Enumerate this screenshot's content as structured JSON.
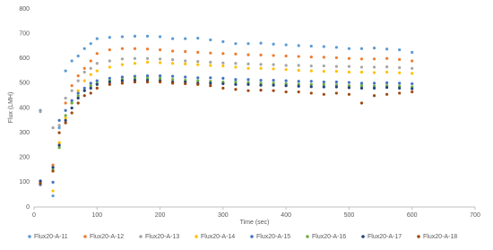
{
  "chart_data": {
    "type": "scatter",
    "x_label": "Time (sec)",
    "y_label": "Flux (LMH)",
    "x": [
      10,
      30,
      40,
      50,
      60,
      70,
      80,
      90,
      100,
      120,
      140,
      160,
      180,
      200,
      220,
      240,
      260,
      280,
      300,
      320,
      340,
      360,
      380,
      400,
      420,
      440,
      460,
      480,
      500,
      520,
      540,
      560,
      580,
      600
    ],
    "series": [
      {
        "name": "Flux20-A-11",
        "color": "#5b9bd5",
        "values": [
          390,
          45,
          320,
          550,
          590,
          610,
          640,
          660,
          680,
          685,
          688,
          690,
          690,
          688,
          680,
          680,
          682,
          675,
          668,
          660,
          660,
          662,
          658,
          655,
          652,
          650,
          648,
          645,
          640,
          640,
          642,
          638,
          635,
          625
        ]
      },
      {
        "name": "Flux20-A-12",
        "color": "#ed7d31",
        "values": [
          100,
          170,
          260,
          420,
          490,
          530,
          560,
          590,
          620,
          635,
          640,
          640,
          638,
          635,
          630,
          628,
          625,
          622,
          620,
          618,
          615,
          614,
          612,
          610,
          608,
          606,
          605,
          603,
          600,
          598,
          598,
          600,
          596,
          590
        ]
      },
      {
        "name": "Flux20-A-13",
        "color": "#a5a5a5",
        "values": [
          385,
          320,
          330,
          440,
          470,
          510,
          545,
          560,
          580,
          590,
          598,
          600,
          600,
          598,
          595,
          590,
          588,
          585,
          582,
          580,
          578,
          576,
          575,
          572,
          572,
          570,
          570,
          568,
          568,
          565,
          565,
          566,
          563,
          560
        ]
      },
      {
        "name": "Flux20-A-14",
        "color": "#ffc000",
        "values": [
          95,
          65,
          260,
          360,
          420,
          470,
          510,
          535,
          550,
          565,
          575,
          580,
          585,
          583,
          580,
          578,
          575,
          572,
          570,
          565,
          560,
          560,
          558,
          555,
          552,
          550,
          548,
          548,
          545,
          545,
          543,
          545,
          542,
          540
        ]
      },
      {
        "name": "Flux20-A-15",
        "color": "#4472c4",
        "values": [
          90,
          100,
          350,
          390,
          430,
          460,
          480,
          500,
          510,
          520,
          525,
          528,
          530,
          530,
          528,
          525,
          522,
          522,
          520,
          515,
          515,
          512,
          512,
          510,
          508,
          508,
          505,
          505,
          503,
          500,
          500,
          502,
          500,
          498
        ]
      },
      {
        "name": "Flux20-A-16",
        "color": "#70ad47",
        "values": [
          100,
          150,
          240,
          370,
          420,
          450,
          470,
          490,
          500,
          510,
          515,
          520,
          520,
          520,
          515,
          512,
          510,
          508,
          505,
          505,
          503,
          500,
          500,
          498,
          496,
          495,
          495,
          493,
          490,
          490,
          488,
          490,
          488,
          485
        ]
      },
      {
        "name": "Flux20-A-17",
        "color": "#264478",
        "values": [
          105,
          160,
          250,
          350,
          400,
          440,
          470,
          480,
          495,
          505,
          510,
          512,
          512,
          510,
          505,
          505,
          500,
          500,
          498,
          495,
          495,
          492,
          492,
          490,
          488,
          486,
          485,
          485,
          482,
          480,
          480,
          483,
          480,
          478
        ]
      },
      {
        "name": "Flux20-A-18",
        "color": "#9e480e",
        "values": [
          95,
          145,
          300,
          340,
          380,
          420,
          450,
          460,
          480,
          495,
          500,
          505,
          505,
          505,
          500,
          498,
          495,
          490,
          480,
          475,
          470,
          472,
          470,
          465,
          465,
          460,
          455,
          460,
          455,
          420,
          450,
          455,
          460,
          465
        ]
      }
    ],
    "xlim": [
      0,
      700
    ],
    "xticks": [
      0,
      100,
      200,
      300,
      400,
      500,
      600,
      700
    ],
    "ylim": [
      0,
      800
    ],
    "yticks": [
      0,
      100,
      200,
      300,
      400,
      500,
      600,
      700,
      800
    ],
    "grid": false,
    "legend": "bottom"
  }
}
